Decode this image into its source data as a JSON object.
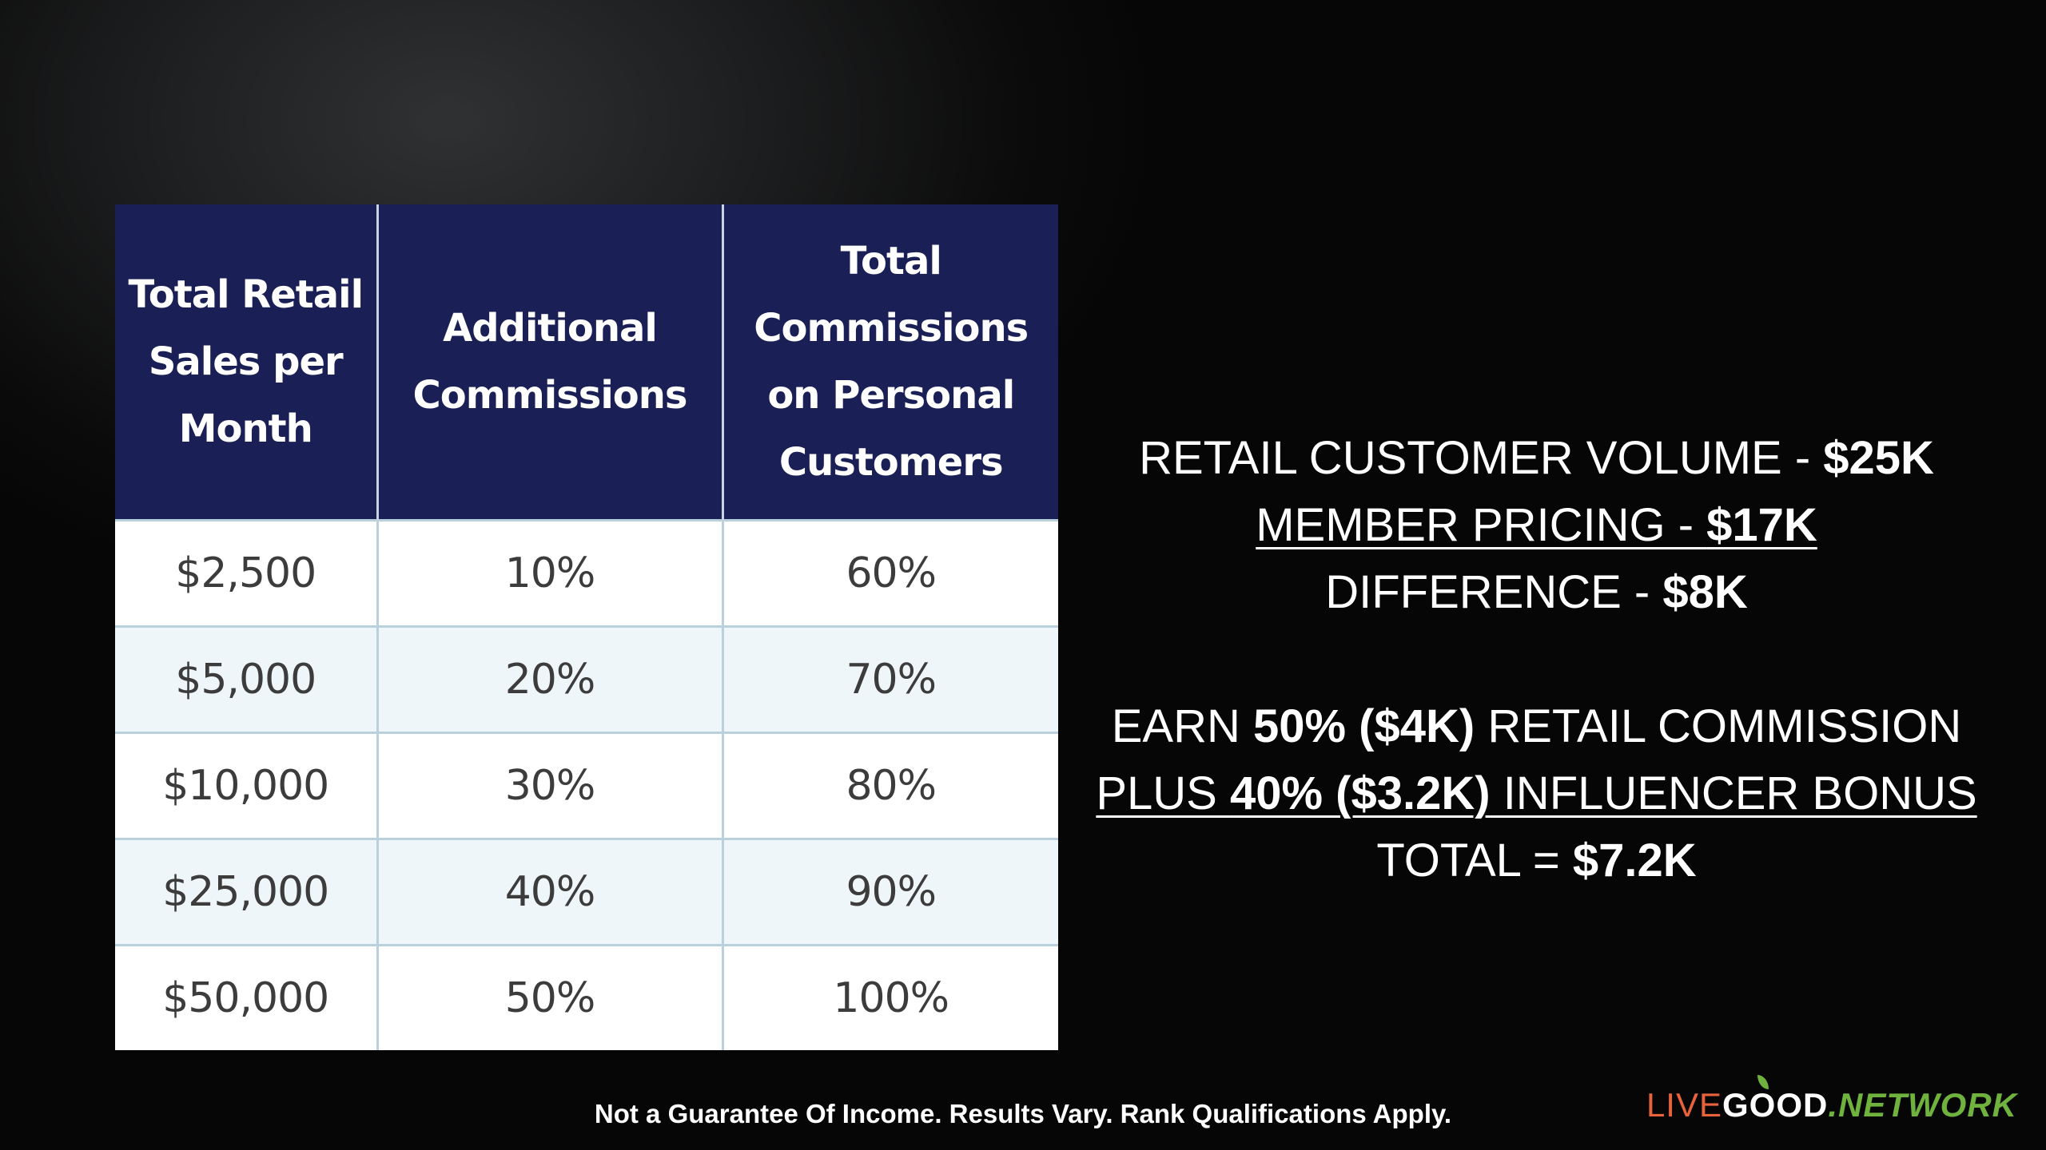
{
  "table": {
    "headers": [
      "Total Retail Sales per Month",
      "Additional Commissions",
      "Total Commissions on Personal Customers"
    ],
    "rows": [
      [
        "$2,500",
        "10%",
        "60%"
      ],
      [
        "$5,000",
        "20%",
        "70%"
      ],
      [
        "$10,000",
        "30%",
        "80%"
      ],
      [
        "$25,000",
        "40%",
        "90%"
      ],
      [
        "$50,000",
        "50%",
        "100%"
      ]
    ]
  },
  "summary": {
    "line1_text": "RETAIL CUSTOMER VOLUME - ",
    "line1_value": "$25K",
    "line2_text": "MEMBER PRICING - ",
    "line2_value": "$17K",
    "line3_text": "DIFFERENCE - ",
    "line3_value": "$8K",
    "line4_prefix": "EARN ",
    "line4_value": "50% ($4K)",
    "line4_suffix": " RETAIL COMMISSION",
    "line5_prefix": "PLUS ",
    "line5_value": "40% ($3.2K)",
    "line5_suffix": " INFLUENCER BONUS",
    "line6_text": "TOTAL = ",
    "line6_value": "$7.2K"
  },
  "disclaimer": "Not a Guarantee Of Income. Results Vary. Rank Qualifications Apply.",
  "logo": {
    "part1": "LIVE",
    "part2": "GOOD",
    "part3": ".NETWORK"
  },
  "colors": {
    "header_bg": "#1a1f55",
    "logo_orange": "#e8623b",
    "logo_green": "#6fb33e"
  }
}
